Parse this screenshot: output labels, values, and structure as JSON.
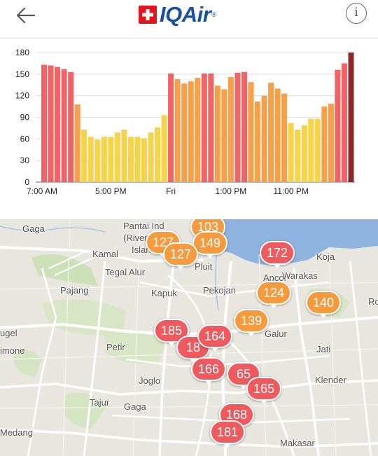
{
  "header": {
    "back_icon": "arrow-left-icon",
    "logo_text": "IQAir",
    "logo_mark": "swiss-cross-icon",
    "logo_reg": "®",
    "info_icon": "info-circle-icon",
    "info_glyph": "i"
  },
  "chart_data": {
    "type": "bar",
    "y_ticks": [
      "0",
      "30",
      "60",
      "90",
      "120",
      "150",
      "180"
    ],
    "ylim": [
      0,
      180
    ],
    "x_tick_labels": [
      "7:00 AM",
      "5:00 PM",
      "Fri",
      "1:00 PM",
      "11:00 PM"
    ],
    "grid": true,
    "colors": {
      "red": "#f06466",
      "orange": "#f7a04a",
      "yellow": "#f6d349",
      "latest": "#8c2a2b",
      "grid": "#d8d8d8"
    },
    "values": [
      163,
      162,
      160,
      157,
      153,
      108,
      73,
      63,
      59,
      63,
      63,
      69,
      73,
      63,
      63,
      61,
      69,
      76,
      93,
      151,
      143,
      137,
      140,
      145,
      151,
      151,
      134,
      129,
      146,
      152,
      153,
      139,
      112,
      120,
      138,
      130,
      123,
      82,
      73,
      79,
      88,
      88,
      105,
      109,
      156,
      165,
      180
    ]
  },
  "map": {
    "places": [
      {
        "name": "Gaga"
      },
      {
        "name": "Pantai Ind"
      },
      {
        "name": "(River"
      },
      {
        "name": "Island"
      },
      {
        "name": "Kamal"
      },
      {
        "name": "Tegal Alur"
      },
      {
        "name": "Pluit"
      },
      {
        "name": "Pajang"
      },
      {
        "name": "Kapuk"
      },
      {
        "name": "Pekojan"
      },
      {
        "name": "Ancol"
      },
      {
        "name": "Warakas"
      },
      {
        "name": "Koja"
      },
      {
        "name": "Ro"
      },
      {
        "name": "ugel"
      },
      {
        "name": "imone"
      },
      {
        "name": "Petir"
      },
      {
        "name": "Galur"
      },
      {
        "name": "Jati"
      },
      {
        "name": "Joglo"
      },
      {
        "name": "Klender"
      },
      {
        "name": "Tajur"
      },
      {
        "name": "Gaga"
      },
      {
        "name": "Medang"
      },
      {
        "name": "Makasar"
      }
    ],
    "markers": [
      {
        "value": "103",
        "level": "orange"
      },
      {
        "value": "127",
        "level": "orange"
      },
      {
        "value": "149",
        "level": "orange"
      },
      {
        "value": "127",
        "level": "orange"
      },
      {
        "value": "172",
        "level": "red"
      },
      {
        "value": "124",
        "level": "orange"
      },
      {
        "value": "140",
        "level": "orange"
      },
      {
        "value": "139",
        "level": "orange"
      },
      {
        "value": "185",
        "level": "red"
      },
      {
        "value": "18",
        "level": "red"
      },
      {
        "value": "164",
        "level": "red"
      },
      {
        "value": "166",
        "level": "red"
      },
      {
        "value": "65",
        "level": "red"
      },
      {
        "value": "165",
        "level": "red"
      },
      {
        "value": "168",
        "level": "red"
      },
      {
        "value": "181",
        "level": "red"
      }
    ]
  }
}
